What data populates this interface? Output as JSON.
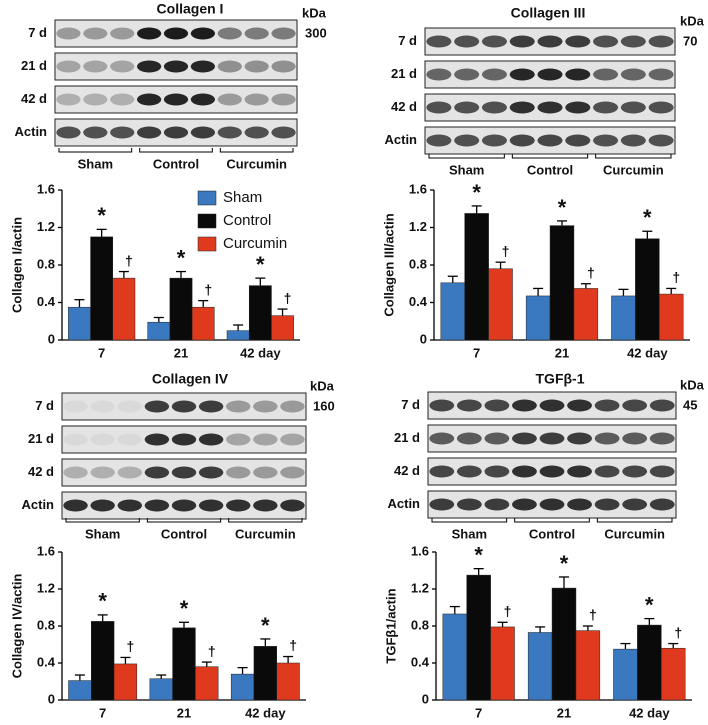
{
  "blots": [
    {
      "title": "Collagen I",
      "unit": "kDa",
      "size": 300,
      "rows": [
        "7 d",
        "21 d",
        "42 d",
        "Actin"
      ],
      "groups": [
        "Sham",
        "Control",
        "Curcumin"
      ]
    },
    {
      "title": "Collagen III",
      "unit": "kDa",
      "size": 70,
      "rows": [
        "7 d",
        "21 d",
        "42 d",
        "Actin"
      ],
      "groups": [
        "Sham",
        "Control",
        "Curcumin"
      ]
    },
    {
      "title": "Collagen IV",
      "unit": "kDa",
      "size": 160,
      "rows": [
        "7 d",
        "21 d",
        "42 d",
        "Actin"
      ],
      "groups": [
        "Sham",
        "Control",
        "Curcumin"
      ]
    },
    {
      "title": "TGFβ-1",
      "unit": "kDa",
      "size": 45,
      "rows": [
        "7 d",
        "21 d",
        "42 d",
        "Actin"
      ],
      "groups": [
        "Sham",
        "Control",
        "Curcumin"
      ]
    }
  ],
  "chart_data": [
    {
      "type": "bar",
      "y_label": "Collagen I/actin",
      "categories": [
        "7",
        "21",
        "42 day"
      ],
      "legend": true,
      "ylim": [
        0,
        1.6
      ],
      "yticks": [
        0,
        0.4,
        0.8,
        1.2,
        1.6
      ],
      "series": [
        {
          "name": "Sham",
          "color": "#3a78c0",
          "values": [
            0.35,
            0.19,
            0.1
          ],
          "errors": [
            0.08,
            0.05,
            0.06
          ]
        },
        {
          "name": "Control",
          "color": "#0a0a0a",
          "values": [
            1.1,
            0.66,
            0.58
          ],
          "errors": [
            0.08,
            0.07,
            0.08
          ],
          "labels": [
            "*",
            "*",
            "*"
          ]
        },
        {
          "name": "Curcumin",
          "color": "#e03a1e",
          "values": [
            0.66,
            0.35,
            0.26
          ],
          "errors": [
            0.07,
            0.07,
            0.07
          ],
          "labels": [
            "†",
            "†",
            "†"
          ]
        }
      ]
    },
    {
      "type": "bar",
      "y_label": "Collagen III/actin",
      "categories": [
        "7",
        "21",
        "42 day"
      ],
      "ylim": [
        0,
        1.6
      ],
      "yticks": [
        0,
        0.4,
        0.8,
        1.2,
        1.6
      ],
      "series": [
        {
          "color": "#3a78c0",
          "values": [
            0.61,
            0.47,
            0.47
          ],
          "errors": [
            0.07,
            0.08,
            0.07
          ]
        },
        {
          "color": "#0a0a0a",
          "values": [
            1.35,
            1.22,
            1.08
          ],
          "errors": [
            0.08,
            0.05,
            0.08
          ],
          "labels": [
            "*",
            "*",
            "*"
          ]
        },
        {
          "color": "#e03a1e",
          "values": [
            0.76,
            0.55,
            0.49
          ],
          "errors": [
            0.07,
            0.05,
            0.06
          ],
          "labels": [
            "†",
            "†",
            "†"
          ]
        }
      ]
    },
    {
      "type": "bar",
      "y_label": "Collagen IV/actin",
      "categories": [
        "7",
        "21",
        "42 day"
      ],
      "ylim": [
        0,
        1.6
      ],
      "yticks": [
        0,
        0.4,
        0.8,
        1.2,
        1.6
      ],
      "series": [
        {
          "color": "#3a78c0",
          "values": [
            0.21,
            0.23,
            0.28
          ],
          "errors": [
            0.06,
            0.04,
            0.07
          ]
        },
        {
          "color": "#0a0a0a",
          "values": [
            0.85,
            0.78,
            0.58
          ],
          "errors": [
            0.07,
            0.06,
            0.08
          ],
          "labels": [
            "*",
            "*",
            "*"
          ]
        },
        {
          "color": "#e03a1e",
          "values": [
            0.39,
            0.36,
            0.4
          ],
          "errors": [
            0.07,
            0.05,
            0.07
          ],
          "labels": [
            "†",
            "†",
            "†"
          ]
        }
      ]
    },
    {
      "type": "bar",
      "y_label": "TGFβ1/actin",
      "categories": [
        "7",
        "21",
        "42 day"
      ],
      "ylim": [
        0,
        1.6
      ],
      "yticks": [
        0,
        0.4,
        0.8,
        1.2,
        1.6
      ],
      "series": [
        {
          "color": "#3a78c0",
          "values": [
            0.93,
            0.73,
            0.55
          ],
          "errors": [
            0.08,
            0.06,
            0.06
          ]
        },
        {
          "color": "#0a0a0a",
          "values": [
            1.35,
            1.21,
            0.81
          ],
          "errors": [
            0.07,
            0.12,
            0.07
          ],
          "labels": [
            "*",
            "*",
            "*"
          ]
        },
        {
          "color": "#e03a1e",
          "values": [
            0.79,
            0.75,
            0.56
          ],
          "errors": [
            0.05,
            0.05,
            0.05
          ],
          "labels": [
            "†",
            "†",
            "†"
          ]
        }
      ]
    }
  ]
}
